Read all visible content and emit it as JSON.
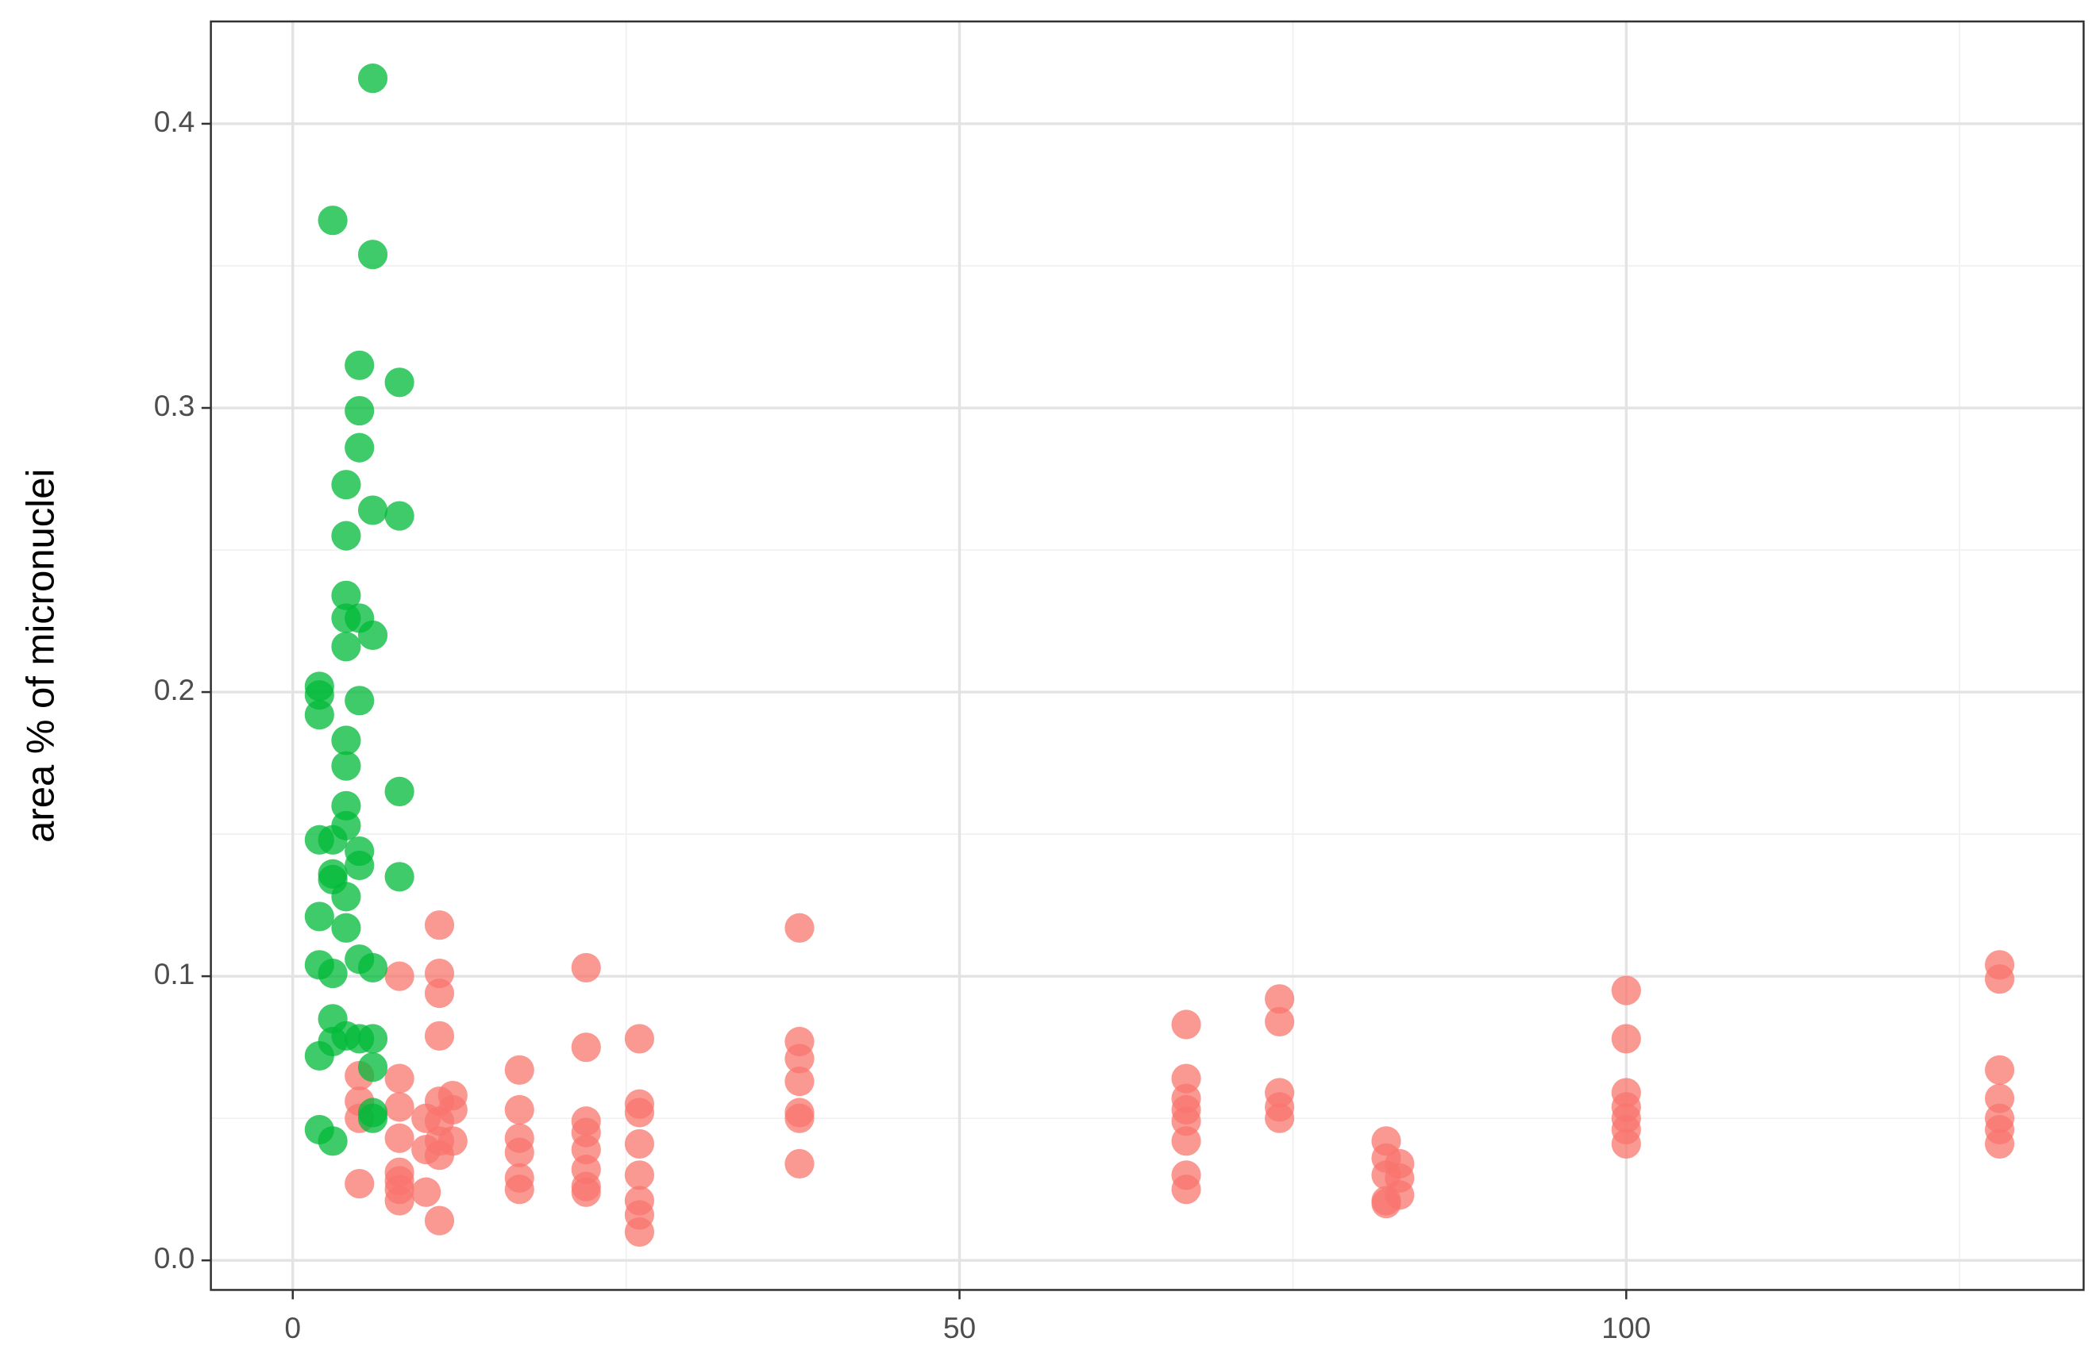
{
  "chart_data": {
    "type": "scatter",
    "y_label": "area % of micronuclei",
    "xlim": [
      -6.14,
      134.3
    ],
    "ylim": [
      -0.0104,
      0.436
    ],
    "xticks": [
      0,
      50,
      100
    ],
    "yticks": [
      {
        "value": 0,
        "label": "0.0"
      },
      0.1,
      0.2,
      0.3,
      0.4
    ],
    "x_minor_ticks": [
      25,
      75,
      125
    ],
    "y_minor_ticks": [
      0.05,
      0.15,
      0.25,
      0.35
    ],
    "grid": true,
    "alpha": 0.75,
    "series": [
      {
        "color": "#F8766D",
        "x": [
          5,
          5,
          5,
          5,
          8,
          8,
          8,
          8,
          8,
          8,
          8,
          8,
          10,
          10,
          10,
          11,
          11,
          11,
          11,
          11,
          11,
          11,
          11,
          11,
          12,
          12,
          12,
          17,
          17,
          17,
          17,
          17,
          17,
          22,
          22,
          22,
          22,
          22,
          22,
          22,
          22,
          26,
          26,
          26,
          26,
          26,
          26,
          26,
          26,
          38,
          38,
          38,
          38,
          38,
          38,
          38,
          67,
          67,
          67,
          67,
          67,
          67,
          67,
          67,
          74,
          74,
          74,
          74,
          74,
          82,
          82,
          82,
          82,
          82,
          83,
          83,
          83,
          100,
          100,
          100,
          100,
          100,
          100,
          100,
          128,
          128,
          128,
          128,
          128,
          128,
          128
        ],
        "y": [
          0.065,
          0.056,
          0.05,
          0.027,
          0.1,
          0.064,
          0.054,
          0.043,
          0.031,
          0.028,
          0.025,
          0.021,
          0.05,
          0.039,
          0.024,
          0.118,
          0.101,
          0.094,
          0.079,
          0.056,
          0.049,
          0.042,
          0.037,
          0.014,
          0.058,
          0.053,
          0.042,
          0.067,
          0.053,
          0.043,
          0.038,
          0.029,
          0.025,
          0.103,
          0.075,
          0.049,
          0.045,
          0.039,
          0.032,
          0.026,
          0.024,
          0.078,
          0.055,
          0.052,
          0.041,
          0.03,
          0.021,
          0.016,
          0.01,
          0.117,
          0.077,
          0.071,
          0.063,
          0.052,
          0.05,
          0.034,
          0.083,
          0.064,
          0.057,
          0.053,
          0.049,
          0.042,
          0.03,
          0.025,
          0.092,
          0.084,
          0.059,
          0.054,
          0.05,
          0.042,
          0.036,
          0.03,
          0.021,
          0.02,
          0.034,
          0.029,
          0.023,
          0.095,
          0.078,
          0.059,
          0.054,
          0.05,
          0.046,
          0.041,
          0.104,
          0.099,
          0.067,
          0.057,
          0.05,
          0.046,
          0.041
        ]
      },
      {
        "color": "#00BA38",
        "x": [
          6,
          3,
          6,
          5,
          8,
          5,
          5,
          4,
          6,
          8,
          4,
          4,
          4,
          5,
          6,
          4,
          2,
          2,
          2,
          5,
          4,
          4,
          8,
          4,
          4,
          2,
          3,
          5,
          5,
          3,
          3,
          8,
          4,
          2,
          4,
          2,
          5,
          6,
          3,
          3,
          2,
          3,
          4,
          5,
          6,
          6,
          6,
          6,
          2,
          3
        ],
        "y": [
          0.416,
          0.366,
          0.354,
          0.315,
          0.309,
          0.299,
          0.286,
          0.273,
          0.264,
          0.262,
          0.255,
          0.234,
          0.226,
          0.226,
          0.22,
          0.216,
          0.202,
          0.199,
          0.192,
          0.197,
          0.183,
          0.174,
          0.165,
          0.16,
          0.153,
          0.148,
          0.148,
          0.144,
          0.139,
          0.136,
          0.134,
          0.135,
          0.128,
          0.121,
          0.117,
          0.104,
          0.106,
          0.103,
          0.101,
          0.085,
          0.072,
          0.077,
          0.079,
          0.078,
          0.078,
          0.068,
          0.052,
          0.05,
          0.046,
          0.042
        ]
      }
    ]
  }
}
